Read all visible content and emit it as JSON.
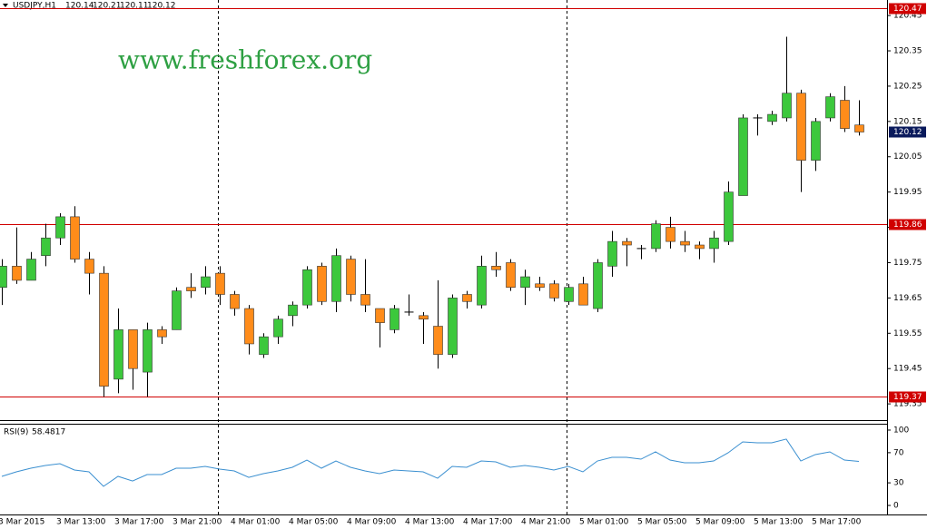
{
  "chart_data": [
    {
      "type": "candlestick",
      "title": "USDJPY,H1",
      "annotation": "www.freshforex.org",
      "categories": [
        "3 Mar 2015",
        null,
        null,
        null,
        "3 Mar 13:00",
        null,
        null,
        null,
        "3 Mar 17:00",
        null,
        null,
        null,
        "3 Mar 21:00",
        null,
        null,
        null,
        "4 Mar 01:00",
        null,
        null,
        null,
        "4 Mar 05:00",
        null,
        null,
        null,
        "4 Mar 09:00",
        null,
        null,
        null,
        "4 Mar 13:00",
        null,
        null,
        null,
        "4 Mar 17:00",
        null,
        null,
        null,
        "4 Mar 21:00",
        null,
        null,
        null,
        "5 Mar 01:00",
        null,
        null,
        null,
        "5 Mar 05:00",
        null,
        null,
        null,
        "5 Mar 09:00",
        null,
        null,
        null,
        "5 Mar 13:00",
        null,
        null,
        null,
        "5 Mar 17:00",
        null,
        null,
        null
      ],
      "open": [
        119.68,
        119.74,
        119.7,
        119.77,
        119.82,
        119.88,
        119.76,
        119.72,
        119.42,
        119.56,
        119.44,
        119.56,
        119.56,
        119.68,
        119.68,
        119.72,
        119.66,
        119.62,
        119.49,
        119.54,
        119.6,
        119.63,
        119.74,
        119.64,
        119.76,
        119.66,
        119.62,
        119.56,
        119.61,
        119.6,
        119.57,
        119.49,
        119.66,
        119.63,
        119.74,
        119.75,
        119.68,
        119.69,
        119.69,
        119.64,
        119.69,
        119.62,
        119.74,
        119.81,
        119.79,
        119.79,
        119.85,
        119.81,
        119.8,
        119.79,
        119.81,
        119.94,
        120.16,
        120.15,
        120.16,
        120.23,
        120.04,
        120.16,
        120.21,
        120.14
      ],
      "high": [
        119.76,
        119.85,
        119.78,
        119.86,
        119.89,
        119.91,
        119.78,
        119.74,
        119.62,
        119.56,
        119.58,
        119.57,
        119.68,
        119.72,
        119.74,
        119.74,
        119.67,
        119.63,
        119.55,
        119.6,
        119.64,
        119.74,
        119.75,
        119.79,
        119.77,
        119.76,
        119.62,
        119.63,
        119.66,
        119.61,
        119.7,
        119.66,
        119.67,
        119.77,
        119.78,
        119.76,
        119.73,
        119.71,
        119.7,
        119.69,
        119.71,
        119.76,
        119.84,
        119.82,
        119.8,
        119.87,
        119.88,
        119.84,
        119.81,
        119.84,
        119.98,
        120.17,
        120.17,
        120.18,
        120.39,
        120.24,
        120.16,
        120.23,
        120.25,
        120.21
      ],
      "low": [
        119.63,
        119.69,
        119.7,
        119.74,
        119.8,
        119.75,
        119.66,
        119.37,
        119.38,
        119.39,
        119.37,
        119.52,
        119.56,
        119.65,
        119.66,
        119.63,
        119.6,
        119.49,
        119.48,
        119.52,
        119.57,
        119.62,
        119.63,
        119.61,
        119.64,
        119.61,
        119.51,
        119.55,
        119.6,
        119.52,
        119.45,
        119.48,
        119.62,
        119.62,
        119.71,
        119.67,
        119.63,
        119.67,
        119.64,
        119.63,
        119.63,
        119.61,
        119.71,
        119.74,
        119.76,
        119.78,
        119.79,
        119.78,
        119.76,
        119.75,
        119.8,
        119.94,
        120.11,
        120.14,
        120.15,
        119.95,
        120.01,
        120.15,
        120.12,
        120.11
      ],
      "close": [
        119.74,
        119.7,
        119.76,
        119.82,
        119.88,
        119.76,
        119.72,
        119.4,
        119.56,
        119.45,
        119.56,
        119.54,
        119.67,
        119.67,
        119.71,
        119.66,
        119.62,
        119.52,
        119.54,
        119.59,
        119.63,
        119.73,
        119.64,
        119.77,
        119.66,
        119.63,
        119.58,
        119.62,
        119.61,
        119.59,
        119.49,
        119.65,
        119.64,
        119.74,
        119.73,
        119.68,
        119.71,
        119.68,
        119.65,
        119.68,
        119.63,
        119.75,
        119.81,
        119.8,
        119.79,
        119.86,
        119.81,
        119.8,
        119.79,
        119.82,
        119.95,
        120.16,
        120.16,
        120.17,
        120.23,
        120.04,
        120.15,
        120.22,
        120.13,
        120.12
      ],
      "up_color": "#3cc83c",
      "down_color": "#ff8c1a",
      "level_color": "#d00000",
      "price_label_color": "#0a1a5c",
      "levels": [
        120.47,
        119.86,
        119.37
      ],
      "ylim": [
        119.304,
        120.494
      ],
      "yticks": [
        120.45,
        120.35,
        120.25,
        120.15,
        120.05,
        119.95,
        119.85,
        119.75,
        119.65,
        119.55,
        119.45,
        119.35
      ]
    },
    {
      "type": "line",
      "title": "RSI(9)",
      "color": "#3a8fd0",
      "values": [
        38.6,
        44.6,
        49.4,
        53.0,
        55.4,
        47.0,
        44.6,
        25.3,
        38.6,
        32.5,
        41.0,
        41.0,
        49.4,
        49.4,
        51.8,
        48.2,
        45.8,
        37.3,
        42.2,
        45.8,
        50.6,
        60.2,
        49.4,
        59.0,
        50.6,
        45.8,
        42.2,
        47.0,
        45.8,
        44.6,
        36.1,
        51.8,
        50.6,
        59.0,
        57.8,
        50.6,
        53.0,
        50.6,
        47.0,
        51.8,
        44.6,
        59.0,
        63.9,
        63.9,
        61.4,
        71.1,
        60.2,
        56.6,
        56.6,
        59.0,
        69.9,
        84.3,
        83.1,
        83.1,
        88.0,
        59.0,
        67.5,
        71.1,
        60.2,
        58.4817
      ],
      "ylim": [
        -12,
        108.4
      ],
      "yticks": [
        100,
        70,
        30,
        0
      ]
    }
  ]
}
